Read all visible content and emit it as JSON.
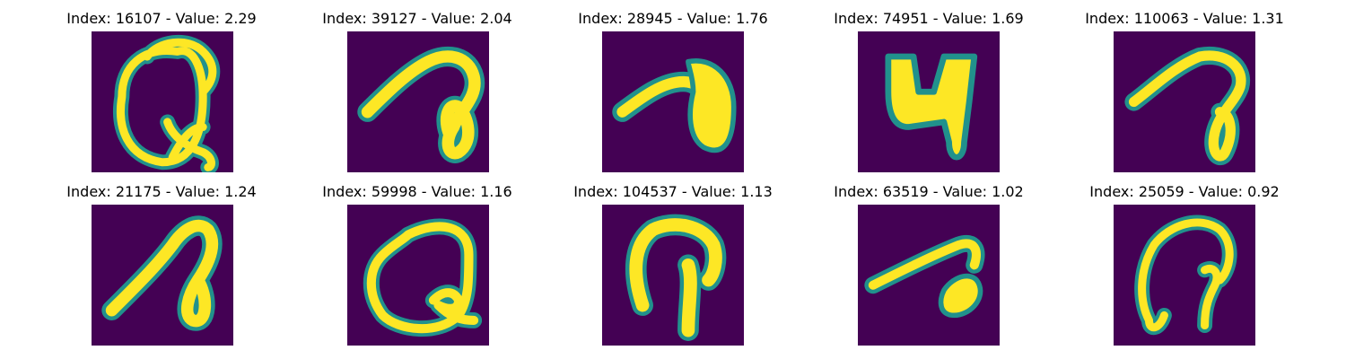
{
  "figure": {
    "colormap": {
      "background": "#440154",
      "mid": "#21918c",
      "high": "#fde725"
    },
    "panels": [
      {
        "title": "Index: 16107 - Value: 2.29",
        "index": 16107,
        "value": 2.29,
        "glyph": "looped Q-like stroke with crossing tail"
      },
      {
        "title": "Index: 39127 - Value: 2.04",
        "index": 39127,
        "value": 2.04,
        "glyph": "hooked stroke with loop"
      },
      {
        "title": "Index: 28945 - Value: 1.76",
        "index": 28945,
        "value": 1.76,
        "glyph": "bold hook blob"
      },
      {
        "title": "Index: 74951 - Value: 1.69",
        "index": 74951,
        "value": 1.69,
        "glyph": "bold 4-like shape"
      },
      {
        "title": "Index: 110063 - Value: 1.31",
        "index": 110063,
        "value": 1.31,
        "glyph": "arched stroke with loop"
      },
      {
        "title": "Index: 21175 - Value: 1.24",
        "index": 21175,
        "value": 1.24,
        "glyph": "diagonal stroke with loop"
      },
      {
        "title": "Index: 59998 - Value: 1.16",
        "index": 59998,
        "value": 1.16,
        "glyph": "large loop Q-like"
      },
      {
        "title": "Index: 104537 - Value: 1.13",
        "index": 104537,
        "value": 1.13,
        "glyph": "arch with central stem"
      },
      {
        "title": "Index: 63519 - Value: 1.02",
        "index": 63519,
        "value": 1.02,
        "glyph": "diagonal stroke with blob"
      },
      {
        "title": "Index: 25059 - Value: 0.92",
        "index": 25059,
        "value": 0.92,
        "glyph": "loop with inner stem"
      }
    ]
  }
}
